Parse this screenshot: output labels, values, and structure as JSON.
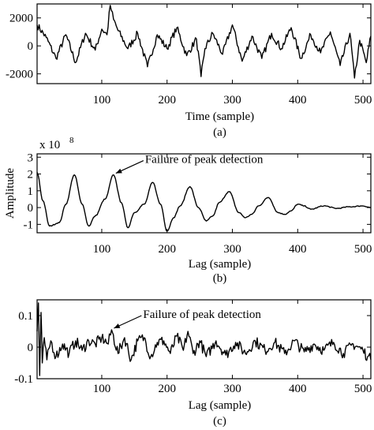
{
  "chart_data": [
    {
      "type": "line",
      "panel": "a",
      "caption": "(a)",
      "xlabel": "Time (sample)",
      "ylabel": "",
      "xlim": [
        1,
        512
      ],
      "ylim": [
        -2700,
        3000
      ],
      "xticks": [
        100,
        200,
        300,
        400,
        500
      ],
      "yticks": [
        2000,
        0,
        -2000
      ],
      "grid": false,
      "series": [
        {
          "x": [
            1,
            15,
            30,
            45,
            60,
            75,
            90,
            100,
            108,
            113,
            118,
            125,
            140,
            155,
            170,
            185,
            200,
            215,
            230,
            245,
            252,
            258,
            270,
            285,
            300,
            315,
            330,
            345,
            360,
            375,
            390,
            405,
            420,
            435,
            450,
            465,
            480,
            487,
            495,
            505,
            512
          ],
          "values": [
            1500,
            600,
            -900,
            800,
            -1200,
            900,
            -300,
            1200,
            800,
            2900,
            1900,
            1100,
            -200,
            900,
            -1500,
            800,
            -200,
            1300,
            -700,
            500,
            -2200,
            -200,
            900,
            -600,
            1500,
            -1100,
            700,
            -900,
            900,
            -200,
            1300,
            -900,
            800,
            -500,
            1000,
            -1400,
            900,
            -2300,
            400,
            -1200,
            700
          ]
        }
      ]
    },
    {
      "type": "line",
      "panel": "b",
      "caption": "(b)",
      "xlabel": "Lag (sample)",
      "ylabel": "Amplitude",
      "scale_label": "x 10",
      "scale_exponent": "8",
      "xlim": [
        1,
        512
      ],
      "ylim": [
        -1.5,
        3.2
      ],
      "xticks": [
        100,
        200,
        300,
        400,
        500
      ],
      "yticks": [
        3,
        2,
        1,
        0,
        -1
      ],
      "grid": false,
      "annotation": {
        "text": "Failure of peak detection",
        "x": 118,
        "y": 1.95
      },
      "series": [
        {
          "x": [
            1,
            10,
            20,
            35,
            45,
            58,
            70,
            80,
            90,
            105,
            118,
            130,
            140,
            150,
            165,
            178,
            190,
            200,
            210,
            220,
            235,
            248,
            260,
            270,
            280,
            295,
            310,
            320,
            330,
            340,
            355,
            370,
            380,
            390,
            400,
            410,
            420,
            440,
            460,
            480,
            500,
            512
          ],
          "values": [
            2.1,
            0.4,
            -1.1,
            -0.9,
            0.2,
            1.95,
            0.2,
            -1.1,
            -0.5,
            0.5,
            1.95,
            0.3,
            -1.2,
            -0.3,
            0.2,
            1.5,
            0.2,
            -1.4,
            -0.6,
            0.1,
            1.25,
            0.0,
            -0.8,
            -0.5,
            0.3,
            0.95,
            -0.3,
            -0.6,
            -0.4,
            0.1,
            0.6,
            -0.3,
            -0.4,
            -0.2,
            0.2,
            0.1,
            -0.1,
            0.1,
            -0.05,
            0.05,
            0.1,
            0.0
          ]
        }
      ]
    },
    {
      "type": "line",
      "panel": "c",
      "caption": "(c)",
      "xlabel": "Lag (sample)",
      "ylabel": "",
      "xlim": [
        1,
        512
      ],
      "ylim": [
        -0.1,
        0.15
      ],
      "xticks": [
        100,
        200,
        300,
        400,
        500
      ],
      "yticks": [
        0.1,
        0,
        -0.1
      ],
      "ytick_labels": [
        "0.1",
        "0",
        "-0.1"
      ],
      "grid": false,
      "annotation": {
        "text": "Failure of peak detection",
        "x": 115,
        "y": 0.055
      },
      "series": [
        {
          "x": [
            1,
            3,
            5,
            7,
            9,
            12,
            16,
            22,
            30,
            40,
            50,
            60,
            70,
            80,
            90,
            100,
            110,
            115,
            125,
            135,
            145,
            155,
            165,
            175,
            185,
            195,
            205,
            215,
            225,
            232,
            240,
            250,
            260,
            275,
            290,
            305,
            320,
            335,
            350,
            365,
            380,
            395,
            410,
            425,
            440,
            455,
            470,
            485,
            500,
            507,
            512
          ],
          "values": [
            0.05,
            0.14,
            -0.09,
            0.11,
            -0.05,
            0.03,
            -0.04,
            0.02,
            -0.03,
            0.01,
            -0.02,
            0.02,
            -0.01,
            0.02,
            0.01,
            0.03,
            0.01,
            0.055,
            -0.02,
            0.03,
            -0.04,
            0.02,
            0.03,
            -0.03,
            0.015,
            0.02,
            -0.02,
            0.035,
            -0.01,
            0.05,
            -0.02,
            0.02,
            -0.03,
            0.02,
            -0.025,
            0.015,
            -0.02,
            0.02,
            -0.01,
            0.015,
            -0.02,
            0.02,
            -0.015,
            0.01,
            -0.01,
            0.015,
            -0.02,
            0.01,
            -0.01,
            -0.03,
            -0.04
          ]
        }
      ]
    }
  ]
}
